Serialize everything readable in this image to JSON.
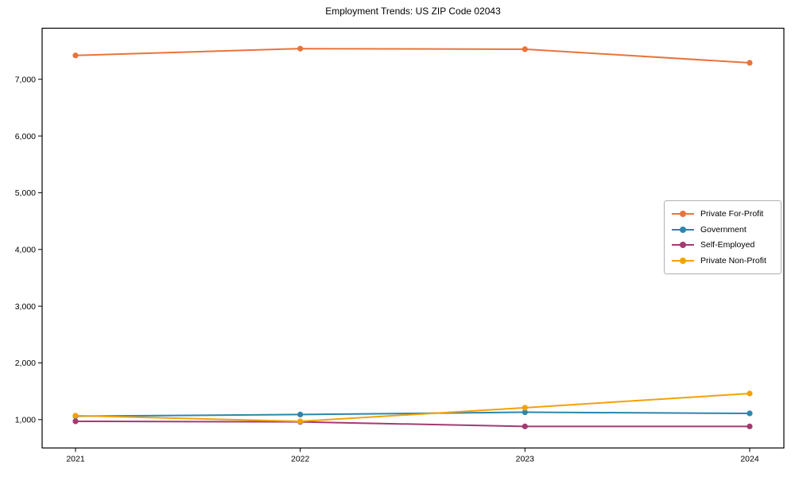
{
  "title": "Employment Trends: US ZIP Code 02043",
  "chart_data": {
    "type": "line",
    "title": "Employment Trends: US ZIP Code 02043",
    "xlabel": "",
    "ylabel": "",
    "x": [
      "2021",
      "2022",
      "2023",
      "2024"
    ],
    "series": [
      {
        "name": "Private For-Profit",
        "color": "#E8743B",
        "values": [
          7420,
          7540,
          7530,
          7290
        ]
      },
      {
        "name": "Government",
        "color": "#2E86AB",
        "values": [
          1060,
          1090,
          1130,
          1110
        ]
      },
      {
        "name": "Self-Employed",
        "color": "#A23B72",
        "values": [
          970,
          960,
          880,
          880
        ]
      },
      {
        "name": "Private Non-Profit",
        "color": "#F1A208",
        "values": [
          1070,
          970,
          1210,
          1460
        ]
      }
    ],
    "ylim": [
      500,
      7900
    ],
    "yticks": [
      1000,
      2000,
      3000,
      4000,
      5000,
      6000,
      7000
    ],
    "ytick_labels": [
      "1,000",
      "2,000",
      "3,000",
      "4,000",
      "5,000",
      "6,000",
      "7,000"
    ],
    "grid": false,
    "legend_position": "center right",
    "axis_color": "#000000",
    "background_color": "#ffffff"
  }
}
